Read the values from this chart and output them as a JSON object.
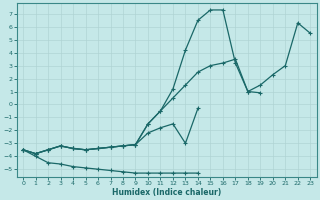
{
  "xlabel": "Humidex (Indice chaleur)",
  "background_color": "#c5e8e8",
  "grid_color": "#b0d4d4",
  "line_color": "#1a6868",
  "spine_color": "#3a8888",
  "xlim": [
    -0.5,
    23.5
  ],
  "ylim": [
    -5.6,
    7.8
  ],
  "yticks": [
    -5,
    -4,
    -3,
    -2,
    -1,
    0,
    1,
    2,
    3,
    4,
    5,
    6,
    7
  ],
  "xticks": [
    0,
    1,
    2,
    3,
    4,
    5,
    6,
    7,
    8,
    9,
    10,
    11,
    12,
    13,
    14,
    15,
    16,
    17,
    18,
    19,
    20,
    21,
    22,
    23
  ],
  "series": [
    {
      "x": [
        0,
        1,
        2,
        3,
        4,
        5,
        6,
        7,
        8,
        9,
        10,
        11,
        12,
        13,
        14
      ],
      "y": [
        -3.5,
        -4.0,
        -4.5,
        -4.6,
        -4.8,
        -4.9,
        -5.0,
        -5.1,
        -5.2,
        -5.3,
        -5.3,
        -5.3,
        -5.3,
        -5.3,
        -5.3
      ]
    },
    {
      "x": [
        0,
        1,
        2,
        3,
        4,
        5,
        6,
        7,
        8,
        9,
        10,
        11,
        12,
        13,
        14
      ],
      "y": [
        -3.5,
        -3.8,
        -3.5,
        -3.2,
        -3.4,
        -3.5,
        -3.4,
        -3.3,
        -3.2,
        -3.1,
        -2.2,
        -1.8,
        -1.5,
        -3.0,
        -0.3
      ]
    },
    {
      "x": [
        0,
        1,
        2,
        3,
        4,
        5,
        6,
        7,
        8,
        9,
        10,
        11,
        12,
        13,
        14,
        15,
        16,
        17,
        18,
        19
      ],
      "y": [
        -3.5,
        -3.8,
        -3.5,
        -3.2,
        -3.4,
        -3.5,
        -3.4,
        -3.3,
        -3.2,
        -3.1,
        -1.5,
        -0.5,
        1.2,
        4.2,
        6.5,
        7.3,
        7.3,
        3.2,
        1.0,
        0.9
      ]
    },
    {
      "x": [
        0,
        1,
        2,
        3,
        4,
        5,
        6,
        7,
        8,
        9,
        10,
        11,
        12,
        13,
        14,
        15,
        16,
        17,
        18,
        19,
        20,
        21,
        22,
        23
      ],
      "y": [
        -3.5,
        -3.8,
        -3.5,
        -3.2,
        -3.4,
        -3.5,
        -3.4,
        -3.3,
        -3.2,
        -3.1,
        -1.5,
        -0.5,
        0.5,
        1.5,
        2.5,
        3.0,
        3.2,
        3.5,
        1.0,
        1.5,
        2.3,
        3.0,
        6.3,
        5.5
      ]
    }
  ]
}
